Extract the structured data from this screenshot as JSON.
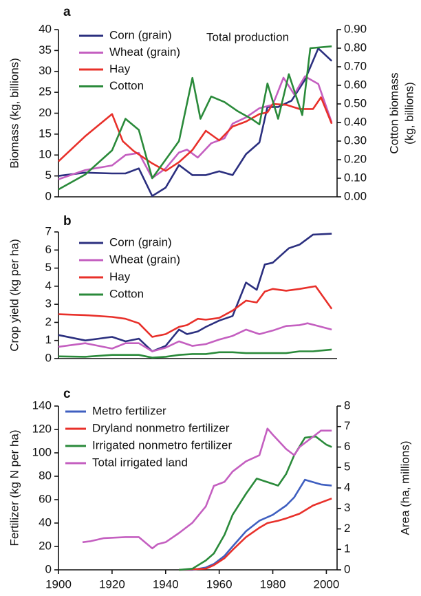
{
  "chart_data": [
    {
      "type": "line",
      "label": "a",
      "annotation": "Total production",
      "ylabel": "Biomass (kg, billions)",
      "y2label": [
        "Cotton biomass",
        "(kg, billions)"
      ],
      "xlim": [
        1900,
        2004
      ],
      "ylim": [
        0,
        40
      ],
      "yticks": [
        0,
        5,
        10,
        15,
        20,
        25,
        30,
        35,
        40
      ],
      "y2lim": [
        0,
        0.9
      ],
      "y2ticks": [
        {
          "value": 0,
          "label": "0.00"
        },
        {
          "value": 0.1,
          "label": "0.10"
        },
        {
          "value": 0.2,
          "label": "0.20"
        },
        {
          "value": 0.3,
          "label": "0.30"
        },
        {
          "value": 0.4,
          "label": "0.40"
        },
        {
          "value": 0.5,
          "label": "0.50"
        },
        {
          "value": 0.6,
          "label": "0.60"
        },
        {
          "value": 0.7,
          "label": "0.70"
        },
        {
          "value": 0.8,
          "label": "0.80"
        },
        {
          "value": 0.9,
          "label": "0.90"
        }
      ],
      "legend": "upper left",
      "series": [
        {
          "name": "Corn (grain)",
          "color": "#2b2f7f",
          "x": [
            1900,
            1910,
            1920,
            1925,
            1930,
            1935,
            1940,
            1945,
            1950,
            1955,
            1960,
            1965,
            1970,
            1975,
            1978,
            1982,
            1987,
            1992,
            1997,
            2002
          ],
          "values": [
            5,
            5.8,
            5.6,
            5.6,
            6.8,
            0.2,
            2.2,
            7.6,
            5.2,
            5.2,
            6.1,
            5.2,
            10.2,
            13,
            21.5,
            21.5,
            23,
            28,
            35.5,
            32.5
          ]
        },
        {
          "name": "Wheat (grain)",
          "color": "#c45fc0",
          "x": [
            1900,
            1910,
            1920,
            1925,
            1930,
            1935,
            1940,
            1945,
            1948,
            1952,
            1957,
            1962,
            1965,
            1970,
            1975,
            1980,
            1984,
            1988,
            1992,
            1997,
            2002
          ],
          "values": [
            4.2,
            6.4,
            7.5,
            10,
            10.5,
            4.5,
            6.8,
            10.6,
            11.3,
            9.4,
            12.8,
            14,
            17.5,
            19,
            21.2,
            22,
            28.5,
            24.5,
            28.8,
            27,
            17.8
          ]
        },
        {
          "name": "Hay",
          "color": "#e8302a",
          "x": [
            1900,
            1910,
            1920,
            1924,
            1928,
            1935,
            1940,
            1945,
            1950,
            1955,
            1960,
            1965,
            1970,
            1975,
            1978,
            1980,
            1985,
            1990,
            1995,
            1998,
            2002
          ],
          "values": [
            8.5,
            14.5,
            19.8,
            13.3,
            11,
            8,
            6.2,
            8.3,
            11.2,
            15.8,
            13.5,
            16.8,
            18,
            19.8,
            20.2,
            22.2,
            22,
            21,
            21,
            23.8,
            17.5
          ]
        },
        {
          "name": "Cotton",
          "color": "#2a8a3a",
          "axis": "y2",
          "x": [
            1900,
            1910,
            1920,
            1925,
            1930,
            1935,
            1940,
            1945,
            1950,
            1953,
            1957,
            1962,
            1967,
            1972,
            1975,
            1978,
            1982,
            1986,
            1991,
            1994,
            2002
          ],
          "values": [
            0.04,
            0.12,
            0.25,
            0.42,
            0.36,
            0.1,
            0.2,
            0.3,
            0.64,
            0.42,
            0.54,
            0.51,
            0.46,
            0.42,
            0.39,
            0.61,
            0.42,
            0.66,
            0.44,
            0.8,
            0.81
          ]
        }
      ]
    },
    {
      "type": "line",
      "label": "b",
      "ylabel": "Crop yield (kg per ha)",
      "xlim": [
        1900,
        2004
      ],
      "ylim": [
        0,
        7
      ],
      "yticks": [
        0,
        1,
        2,
        3,
        4,
        5,
        6,
        7
      ],
      "legend": "upper left",
      "series": [
        {
          "name": "Corn (grain)",
          "color": "#2b2f7f",
          "x": [
            1900,
            1910,
            1920,
            1925,
            1930,
            1935,
            1940,
            1945,
            1948,
            1952,
            1955,
            1960,
            1965,
            1970,
            1974,
            1977,
            1980,
            1983,
            1986,
            1990,
            1995,
            2002
          ],
          "values": [
            1.3,
            1,
            1.2,
            0.95,
            1.1,
            0.4,
            0.7,
            1.6,
            1.35,
            1.5,
            1.75,
            2.1,
            2.35,
            4.2,
            3.8,
            5.2,
            5.3,
            5.7,
            6.1,
            6.3,
            6.85,
            6.9
          ]
        },
        {
          "name": "Wheat (grain)",
          "color": "#c45fc0",
          "x": [
            1900,
            1910,
            1920,
            1925,
            1930,
            1935,
            1940,
            1945,
            1950,
            1955,
            1960,
            1965,
            1970,
            1975,
            1980,
            1985,
            1990,
            1993,
            1997,
            2002
          ],
          "values": [
            0.65,
            0.85,
            0.55,
            0.85,
            0.85,
            0.4,
            0.6,
            0.95,
            0.7,
            0.8,
            1.05,
            1.25,
            1.6,
            1.35,
            1.55,
            1.8,
            1.85,
            1.95,
            1.8,
            1.6
          ]
        },
        {
          "name": "Hay",
          "color": "#e8302a",
          "x": [
            1900,
            1910,
            1920,
            1925,
            1930,
            1935,
            1940,
            1945,
            1948,
            1952,
            1955,
            1960,
            1965,
            1970,
            1974,
            1977,
            1980,
            1985,
            1990,
            1996,
            2002
          ],
          "values": [
            2.45,
            2.4,
            2.3,
            2.2,
            1.95,
            1.2,
            1.35,
            1.75,
            1.85,
            2.2,
            2.15,
            2.25,
            2.65,
            3.2,
            3.1,
            3.7,
            3.85,
            3.75,
            3.85,
            4,
            2.75
          ]
        },
        {
          "name": "Cotton",
          "color": "#2a8a3a",
          "x": [
            1900,
            1910,
            1920,
            1930,
            1935,
            1940,
            1945,
            1950,
            1955,
            1960,
            1965,
            1970,
            1975,
            1980,
            1985,
            1990,
            1995,
            2002
          ],
          "values": [
            0.12,
            0.1,
            0.2,
            0.2,
            0.05,
            0.1,
            0.2,
            0.25,
            0.25,
            0.35,
            0.35,
            0.3,
            0.3,
            0.3,
            0.3,
            0.4,
            0.4,
            0.5
          ]
        }
      ]
    },
    {
      "type": "line",
      "label": "c",
      "ylabel": "Fertilizer (kg N per ha)",
      "y2label": [
        "Area (ha, millions)"
      ],
      "xlim": [
        1900,
        2004
      ],
      "xticks": [
        1900,
        1920,
        1940,
        1960,
        1980,
        2000
      ],
      "ylim": [
        0,
        140
      ],
      "yticks": [
        0,
        20,
        40,
        60,
        80,
        100,
        120,
        140
      ],
      "y2lim": [
        0,
        8
      ],
      "y2ticks": [
        0,
        1,
        2,
        3,
        4,
        5,
        6,
        7,
        8
      ],
      "legend": "upper left",
      "series": [
        {
          "name": "Metro fertilizer",
          "color": "#3f5fc0",
          "x": [
            1945,
            1950,
            1955,
            1958,
            1962,
            1965,
            1970,
            1975,
            1980,
            1985,
            1988,
            1992,
            1995,
            1998,
            2002
          ],
          "values": [
            0,
            0,
            2,
            5,
            12,
            20,
            33,
            42,
            47,
            55,
            62,
            77,
            75,
            73,
            72
          ]
        },
        {
          "name": "Dryland nonmetro fertilizer",
          "color": "#e8302a",
          "x": [
            1945,
            1955,
            1958,
            1962,
            1965,
            1970,
            1975,
            1978,
            1982,
            1985,
            1990,
            1995,
            2002
          ],
          "values": [
            0,
            1,
            4,
            10,
            17,
            28,
            36,
            40,
            42,
            44,
            48,
            55,
            61
          ]
        },
        {
          "name": "Irrigated nonmetro fertilizer",
          "color": "#2a8a3a",
          "x": [
            1945,
            1950,
            1955,
            1958,
            1962,
            1965,
            1970,
            1974,
            1978,
            1982,
            1985,
            1988,
            1992,
            1996,
            2000,
            2002
          ],
          "values": [
            0,
            1,
            8,
            14,
            30,
            47,
            65,
            78,
            75,
            72,
            82,
            98,
            113,
            114,
            107,
            105
          ]
        },
        {
          "name": "Total irrigated land",
          "color": "#c45fc0",
          "axis": "y2",
          "x": [
            1909,
            1912,
            1917,
            1925,
            1930,
            1935,
            1937,
            1940,
            1945,
            1950,
            1955,
            1958,
            1962,
            1965,
            1970,
            1975,
            1978,
            1980,
            1985,
            1988,
            1990,
            1995,
            1998,
            2002
          ],
          "values": [
            1.35,
            1.4,
            1.55,
            1.6,
            1.6,
            1.05,
            1.25,
            1.35,
            1.8,
            2.3,
            3.1,
            4.1,
            4.3,
            4.8,
            5.3,
            5.6,
            6.9,
            6.6,
            5.9,
            5.6,
            6,
            6.5,
            6.8,
            6.8
          ]
        }
      ]
    }
  ]
}
